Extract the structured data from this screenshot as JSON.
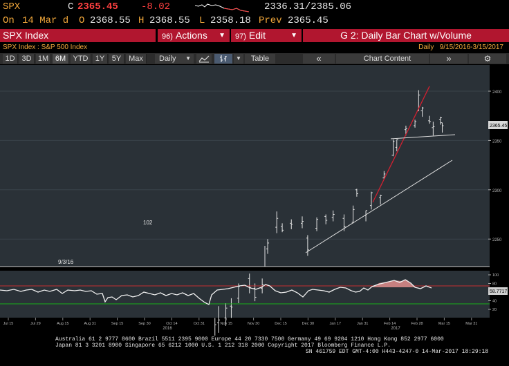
{
  "quote": {
    "ticker": "SPX",
    "close_label": "C",
    "close": "2365.45",
    "change": "-8.02",
    "range": "2336.31/2385.06",
    "date_prefix": "On",
    "date": "14 Mar d",
    "open_label": "O",
    "open": "2368.55",
    "high_label": "H",
    "high": "2368.55",
    "low_label": "L",
    "low": "2358.18",
    "prev_label": "Prev",
    "prev": "2365.45"
  },
  "toolbar": {
    "security": "SPX Index",
    "actions_num": "96)",
    "actions_label": "Actions",
    "edit_num": "97)",
    "edit_label": "Edit",
    "graph_title": "G 2: Daily Bar Chart w/Volume"
  },
  "subheader": {
    "security_desc": "SPX Index : S&P 500 Index",
    "frequency": "Daily",
    "date_range": "9/15/2016-3/15/2017"
  },
  "periods": [
    "1D",
    "3D",
    "1M",
    "6M",
    "YTD",
    "1Y",
    "5Y",
    "Max"
  ],
  "active_period": "6M",
  "controls": {
    "frequency": "Daily",
    "table": "Table",
    "chart_content": "Chart Content"
  },
  "chart_data": {
    "type": "bar",
    "price_axis_ticks": [
      "2400",
      "2350",
      "2300",
      "2250"
    ],
    "current_price_label": "2365.45",
    "annotations": [
      "102",
      "9/3/16"
    ],
    "x_ticks": [
      "Jul 15",
      "Jul 29",
      "Aug 15",
      "Aug 31",
      "Sep 15",
      "Sep 30",
      "Oct 14",
      "Oct 31",
      "Nov 15",
      "Nov 30",
      "Dec 15",
      "Dec 30",
      "Jan 17",
      "Jan 31",
      "Feb 14",
      "Feb 28",
      "Mar 15",
      "Mar 31"
    ],
    "year_labels": [
      "2016",
      "2017"
    ],
    "rsi_axis_ticks": [
      "100",
      "80",
      "60",
      "40",
      "20"
    ],
    "rsi_current": "58.7717",
    "ohlc": [
      {
        "x": "Nov 9",
        "o": 2131,
        "h": 2170,
        "l": 2125,
        "c": 2163
      },
      {
        "x": "Nov 11",
        "o": 2165,
        "h": 2182,
        "l": 2155,
        "c": 2168
      },
      {
        "x": "Nov 15",
        "o": 2170,
        "h": 2185,
        "l": 2162,
        "c": 2180
      },
      {
        "x": "Nov 18",
        "o": 2182,
        "h": 2190,
        "l": 2170,
        "c": 2181
      },
      {
        "x": "Nov 22",
        "o": 2190,
        "h": 2205,
        "l": 2185,
        "c": 2202
      },
      {
        "x": "Nov 28",
        "o": 2210,
        "h": 2215,
        "l": 2195,
        "c": 2201
      },
      {
        "x": "Dec 1",
        "o": 2200,
        "h": 2205,
        "l": 2187,
        "c": 2191
      },
      {
        "x": "Dec 5",
        "o": 2200,
        "h": 2210,
        "l": 2195,
        "c": 2204
      },
      {
        "x": "Dec 8",
        "o": 2240,
        "h": 2250,
        "l": 2235,
        "c": 2246
      },
      {
        "x": "Dec 13",
        "o": 2262,
        "h": 2278,
        "l": 2256,
        "c": 2271
      },
      {
        "x": "Dec 16",
        "o": 2263,
        "h": 2266,
        "l": 2257,
        "c": 2259
      },
      {
        "x": "Dec 21",
        "o": 2266,
        "h": 2270,
        "l": 2260,
        "c": 2265
      },
      {
        "x": "Dec 27",
        "o": 2266,
        "h": 2273,
        "l": 2261,
        "c": 2268
      },
      {
        "x": "Dec 30",
        "o": 2251,
        "h": 2254,
        "l": 2233,
        "c": 2239
      },
      {
        "x": "Jan 4",
        "o": 2261,
        "h": 2272,
        "l": 2258,
        "c": 2270
      },
      {
        "x": "Jan 9",
        "o": 2273,
        "h": 2275,
        "l": 2265,
        "c": 2269
      },
      {
        "x": "Jan 13",
        "o": 2272,
        "h": 2279,
        "l": 2268,
        "c": 2275
      },
      {
        "x": "Jan 19",
        "o": 2271,
        "h": 2275,
        "l": 2258,
        "c": 2263
      },
      {
        "x": "Jan 24",
        "o": 2267,
        "h": 2284,
        "l": 2266,
        "c": 2280
      },
      {
        "x": "Jan 26",
        "o": 2300,
        "h": 2301,
        "l": 2293,
        "c": 2296
      },
      {
        "x": "Jan 31",
        "o": 2274,
        "h": 2279,
        "l": 2268,
        "c": 2279
      },
      {
        "x": "Feb 3",
        "o": 2284,
        "h": 2298,
        "l": 2280,
        "c": 2297
      },
      {
        "x": "Feb 8",
        "o": 2292,
        "h": 2295,
        "l": 2285,
        "c": 2294
      },
      {
        "x": "Feb 10",
        "o": 2312,
        "h": 2319,
        "l": 2311,
        "c": 2316
      },
      {
        "x": "Feb 15",
        "o": 2335,
        "h": 2351,
        "l": 2334,
        "c": 2349
      },
      {
        "x": "Feb 17",
        "o": 2343,
        "h": 2351,
        "l": 2339,
        "c": 2351
      },
      {
        "x": "Feb 22",
        "o": 2361,
        "h": 2365,
        "l": 2355,
        "c": 2362
      },
      {
        "x": "Feb 27",
        "o": 2365,
        "h": 2371,
        "l": 2363,
        "c": 2369
      },
      {
        "x": "Mar 1",
        "o": 2380,
        "h": 2401,
        "l": 2380,
        "c": 2396
      },
      {
        "x": "Mar 3",
        "o": 2380,
        "h": 2384,
        "l": 2374,
        "c": 2383
      },
      {
        "x": "Mar 7",
        "o": 2370,
        "h": 2375,
        "l": 2367,
        "c": 2369
      },
      {
        "x": "Mar 9",
        "o": 2363,
        "h": 2369,
        "l": 2355,
        "c": 2364
      },
      {
        "x": "Mar 13",
        "o": 2371,
        "h": 2374,
        "l": 2366,
        "c": 2373
      },
      {
        "x": "Mar 14",
        "o": 2368,
        "h": 2368,
        "l": 2358,
        "c": 2365
      }
    ]
  },
  "footer": {
    "line1": "Australia 61 2 9777 8600 Brazil 5511 2395 9000 Europe 44 20 7330 7500 Germany 49 69 9204 1210 Hong Kong 852 2977 6000",
    "line2": "Japan 81 3 3201 8900         Singapore 65 6212 1000      U.S. 1 212 318 2000          Copyright 2017 Bloomberg Finance L.P.",
    "line3": "SN 461759 EDT  GMT-4:00 H443-4247-0 14-Mar-2017 18:29:18"
  },
  "colors": {
    "bloomberg_red": "#b1162f",
    "amber": "#f3a83b",
    "chart_bg": "#2a3137",
    "trendline_red": "#d42030",
    "rsi_overbought": "#c83030",
    "rsi_oversold": "#18b018"
  }
}
